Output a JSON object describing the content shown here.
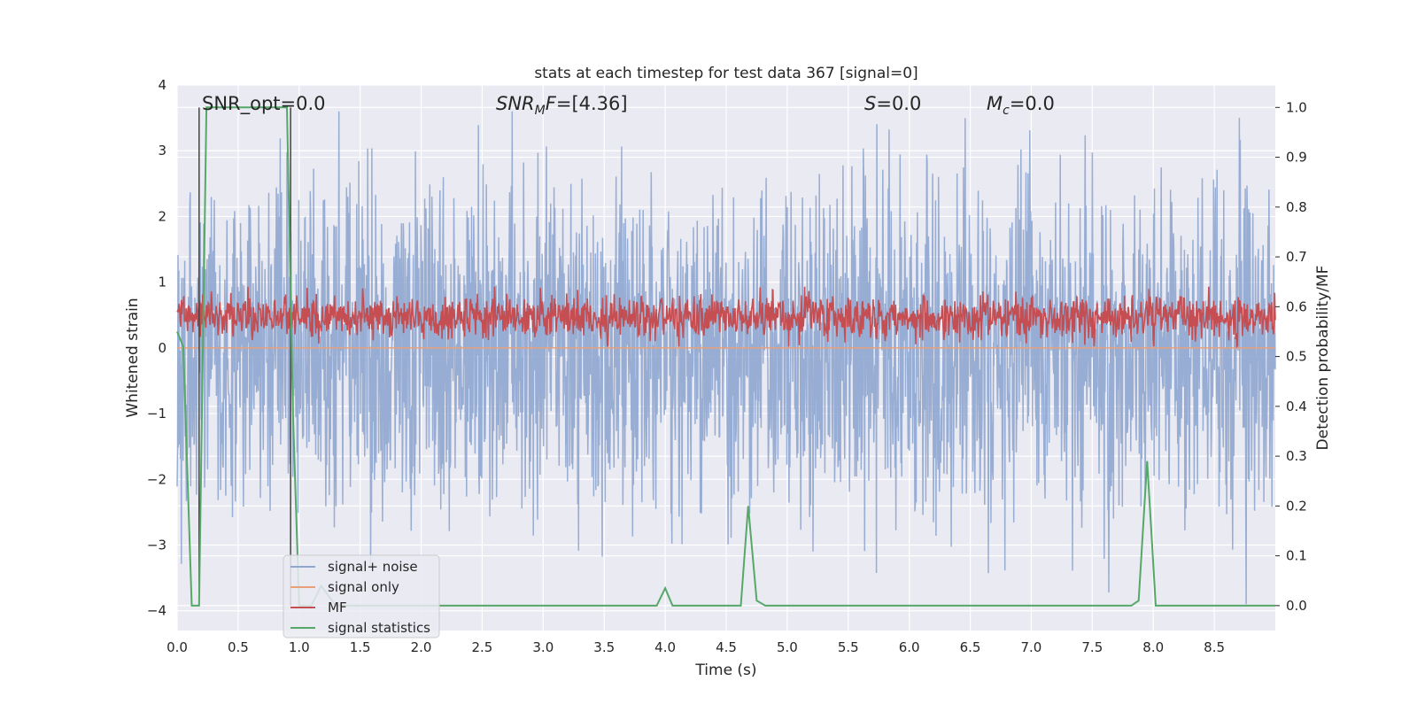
{
  "chart_data": {
    "type": "line",
    "title": "stats at each timestep for test data 367 [signal=0]",
    "xlabel": "Time (s)",
    "ylabel_left": "Whitened strain",
    "ylabel_right": "Detection probability/MF",
    "xlim": [
      0.0,
      9.0
    ],
    "ylim_left": [
      -4.3,
      4.0
    ],
    "ylim_right": [
      -0.05,
      1.045
    ],
    "x_ticks": [
      "0.0",
      "0.5",
      "1.0",
      "1.5",
      "2.0",
      "2.5",
      "3.0",
      "3.5",
      "4.0",
      "4.5",
      "5.0",
      "5.5",
      "6.0",
      "6.5",
      "7.0",
      "7.5",
      "8.0",
      "8.5"
    ],
    "y_ticks_left": [
      "−4",
      "−3",
      "−2",
      "−1",
      "0",
      "1",
      "2",
      "3",
      "4"
    ],
    "y_ticks_right": [
      "0.0",
      "0.1",
      "0.2",
      "0.3",
      "0.4",
      "0.5",
      "0.6",
      "0.7",
      "0.8",
      "0.9",
      "1.0"
    ],
    "grid": true,
    "legend_position": "lower-left",
    "annotations": {
      "snr_opt": "SNR_opt=0.0",
      "snr_mf": "[4.36]",
      "s": "=0.0",
      "mc": "=0.0"
    },
    "series": [
      {
        "name": "signal+ noise",
        "color": "#8fa6cf",
        "axis": "left",
        "kind": "noise",
        "amplitude_typical": 1.3,
        "peak_range": [
          -3.9,
          3.6
        ]
      },
      {
        "name": "signal only",
        "color": "#e8a07a",
        "axis": "left",
        "value": 0.0
      },
      {
        "name": "MF",
        "color": "#c44e52",
        "axis": "right",
        "kind": "noise",
        "range": [
          0.53,
          0.63
        ]
      },
      {
        "name": "signal statistics",
        "color": "#55a868",
        "axis": "right",
        "x": [
          0.0,
          0.05,
          0.12,
          0.18,
          0.24,
          0.9,
          0.95,
          1.0,
          1.1,
          1.18,
          1.3,
          3.93,
          4.0,
          4.06,
          4.62,
          4.68,
          4.75,
          4.82,
          7.82,
          7.88,
          7.95,
          8.02,
          9.0
        ],
        "y": [
          0.55,
          0.52,
          0.0,
          0.0,
          1.0,
          1.0,
          0.38,
          0.0,
          0.0,
          0.04,
          0.0,
          0.0,
          0.035,
          0.0,
          0.0,
          0.2,
          0.01,
          0.0,
          0.0,
          0.01,
          0.29,
          0.0,
          0.0
        ]
      },
      {
        "name": "markers",
        "color": "#444444",
        "axis": "left",
        "vlines": [
          0.18,
          0.93
        ]
      }
    ]
  }
}
